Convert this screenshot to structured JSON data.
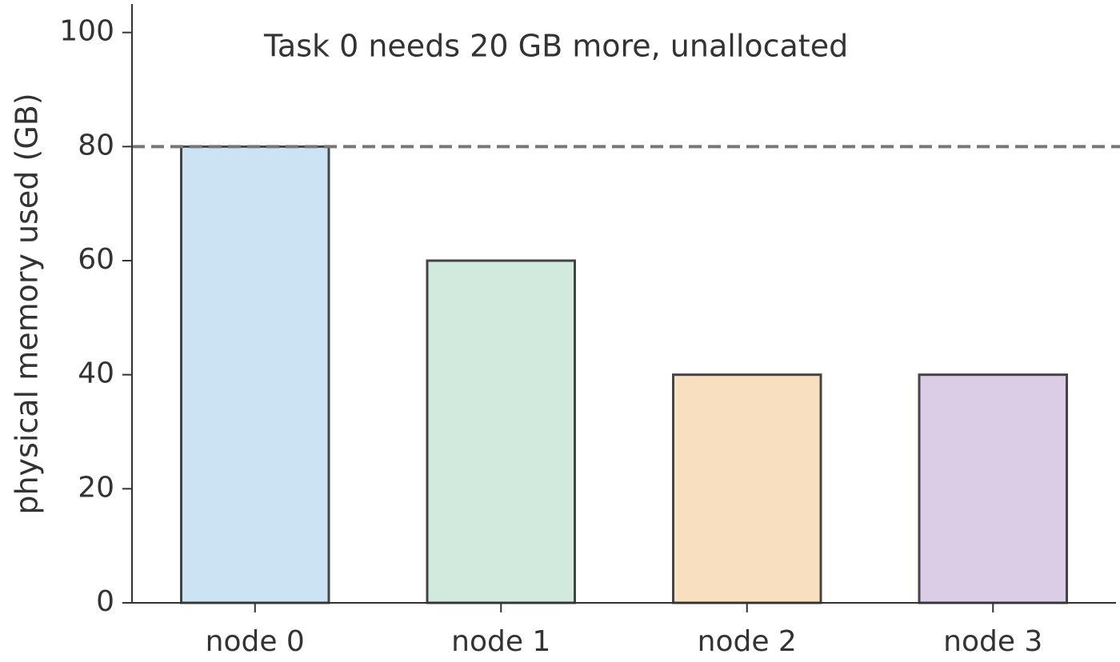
{
  "chart_data": {
    "type": "bar",
    "annotation": "Task 0 needs 20 GB more, unallocated",
    "ylabel": "physical memory used (GB)",
    "categories": [
      "node 0",
      "node 1",
      "node 2",
      "node 3"
    ],
    "values": [
      80,
      60,
      40,
      40
    ],
    "colors": [
      "#cce3f3",
      "#d2e9dd",
      "#f8dfbf",
      "#dccde7"
    ],
    "edgecolor": "#444444",
    "hline": 80,
    "hline_color": "#777777",
    "ylim": [
      0,
      105
    ],
    "yticks": [
      0,
      20,
      40,
      60,
      80,
      100
    ],
    "grid": false
  }
}
